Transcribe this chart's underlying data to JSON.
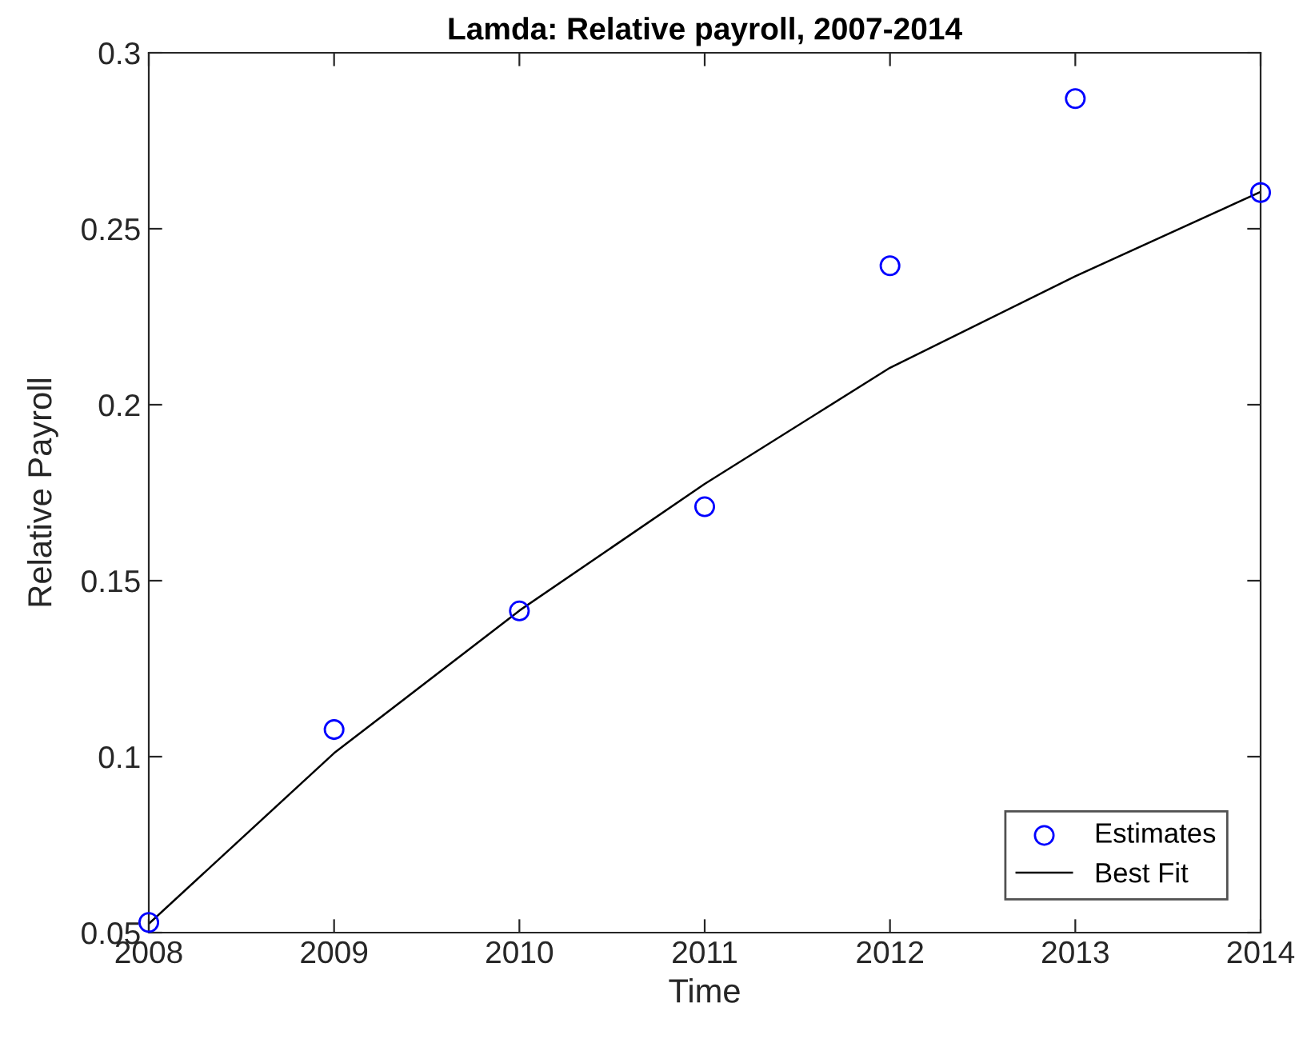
{
  "chart_data": {
    "type": "scatter",
    "title": "Lamda: Relative payroll, 2007-2014",
    "xlabel": "Time",
    "ylabel": "Relative Payroll",
    "x": [
      2008,
      2009,
      2010,
      2011,
      2012,
      2013,
      2014
    ],
    "series": [
      {
        "name": "Estimates",
        "color": "#0000ff",
        "marker": "circle",
        "values": [
          0.0529,
          0.1077,
          0.1414,
          0.171,
          0.2395,
          0.287,
          0.2603
        ]
      },
      {
        "name": "Best Fit",
        "type": "line",
        "color": "#000000",
        "marker": "none",
        "line_style": "solid",
        "values": [
          0.0525,
          0.101,
          0.1415,
          0.1775,
          0.2105,
          0.2365,
          0.2605
        ]
      }
    ],
    "xlim": [
      2008,
      2014
    ],
    "xticks": [
      2008,
      2009,
      2010,
      2011,
      2012,
      2013,
      2014
    ],
    "ylim": [
      0.05,
      0.3
    ],
    "yticks": [
      0.05,
      0.1,
      0.15,
      0.2,
      0.25,
      0.3
    ],
    "grid": false,
    "legend": "bottom right"
  }
}
